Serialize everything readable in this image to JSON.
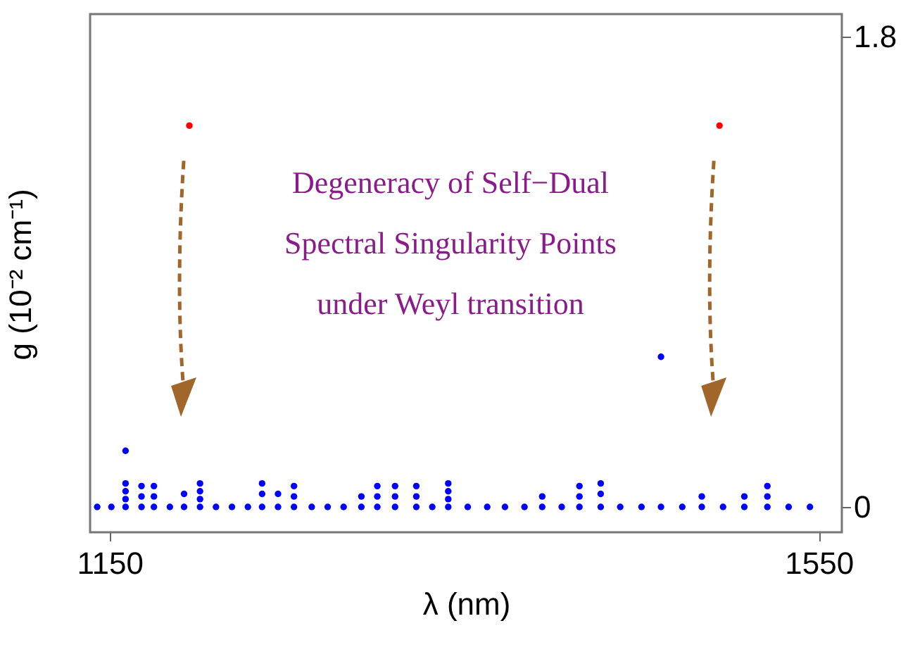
{
  "chart_data": {
    "type": "scatter",
    "xlabel": "λ (nm)",
    "ylabel": "g (10⁻² cm⁻¹)",
    "xlim": [
      1139,
      1563
    ],
    "xticks": [
      1150,
      1550
    ],
    "ylim": [
      -0.097,
      1.887
    ],
    "yticks": [
      0,
      1.8
    ],
    "grid": false,
    "marker": "circle",
    "annotations": [
      "Degeneracy of Self−Dual\nSpectral Singularity Points\nunder Weyl transition"
    ],
    "series": [
      {
        "color": "#ff0000",
        "x": [
          1195,
          1494
        ],
        "values": [
          1.46,
          1.46
        ]
      },
      {
        "color": "#0000ff",
        "x": [
          1143,
          1151,
          1159,
          1159,
          1159,
          1159,
          1159,
          1168,
          1168,
          1168,
          1175,
          1175,
          1175,
          1184,
          1192,
          1192,
          1201,
          1201,
          1201,
          1201,
          1210,
          1219,
          1228,
          1236,
          1236,
          1236,
          1245,
          1245,
          1254,
          1254,
          1254,
          1264,
          1273,
          1282,
          1292,
          1292,
          1301,
          1301,
          1301,
          1311,
          1311,
          1311,
          1323,
          1323,
          1323,
          1332,
          1341,
          1341,
          1341,
          1341,
          1352,
          1363,
          1373,
          1384,
          1394,
          1394,
          1405,
          1415,
          1415,
          1415,
          1427,
          1427,
          1427,
          1438,
          1450,
          1461,
          1461,
          1473,
          1484,
          1484,
          1496,
          1508,
          1508,
          1521,
          1521,
          1521,
          1533,
          1545
        ],
        "values": [
          0,
          0,
          0,
          0.03,
          0.06,
          0.09,
          0.215,
          0,
          0.04,
          0.08,
          0,
          0.04,
          0.08,
          0,
          0,
          0.05,
          0,
          0.03,
          0.06,
          0.09,
          0,
          0,
          0,
          0,
          0.05,
          0.09,
          0,
          0.05,
          0,
          0.04,
          0.08,
          0,
          0,
          0,
          0,
          0.04,
          0,
          0.04,
          0.08,
          0,
          0.04,
          0.08,
          0,
          0.04,
          0.08,
          0,
          0,
          0.03,
          0.06,
          0.09,
          0,
          0,
          0,
          0,
          0,
          0.04,
          0,
          0,
          0.04,
          0.08,
          0,
          0.05,
          0.09,
          0,
          0,
          0,
          0.575,
          0,
          0,
          0.04,
          0,
          0,
          0.04,
          0,
          0.04,
          0.08,
          0,
          0
        ]
      }
    ]
  }
}
